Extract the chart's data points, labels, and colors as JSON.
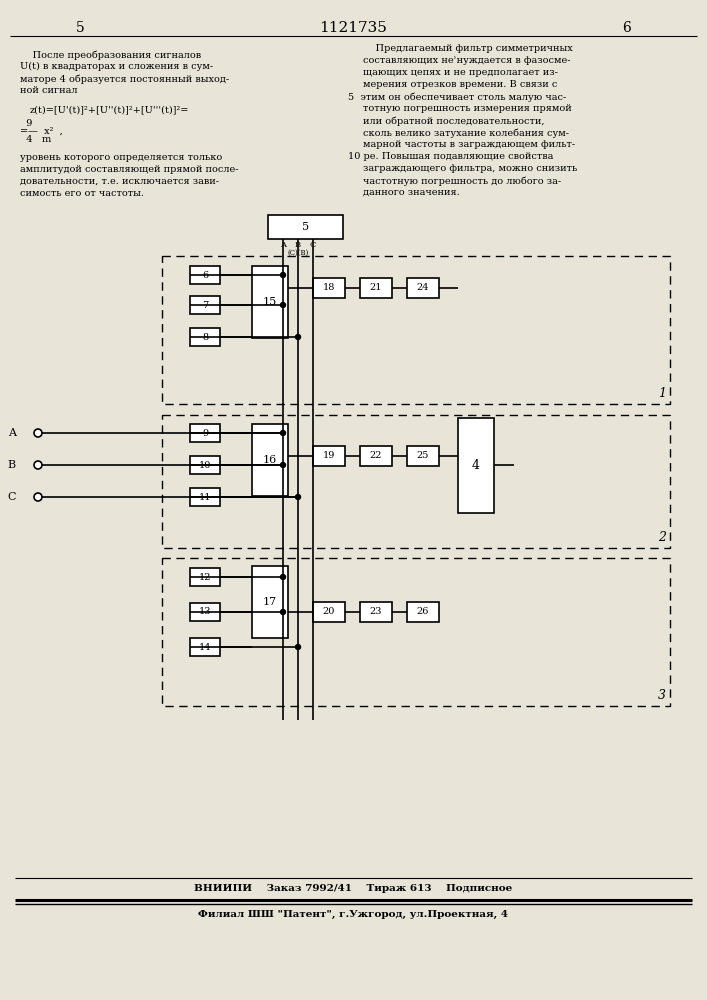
{
  "title": "1121735",
  "page_left": "5",
  "page_right": "6",
  "footer1": "ВНИИПИ    Заказ 7992/41    Тираж 613    Подписное",
  "footer2": "Филиал ШШ \"Патент\", г.Ужгород, ул.Проектная, 4",
  "bg_color": "#e8e4d8",
  "lw": 1.2
}
